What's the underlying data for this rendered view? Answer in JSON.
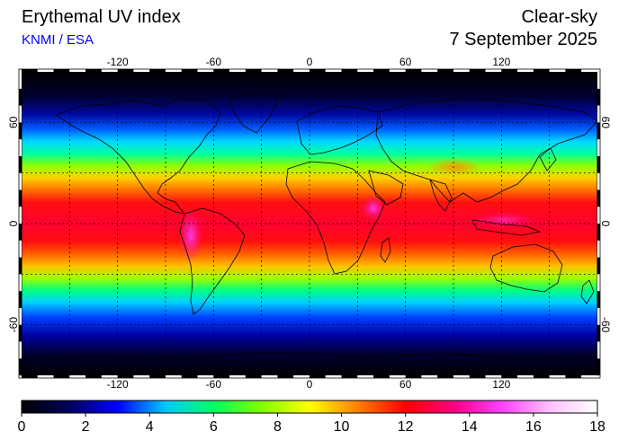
{
  "header": {
    "title": "Erythemal UV index",
    "source": "KNMI / ESA",
    "subtitle": "Clear-sky",
    "date": "7 September 2025"
  },
  "map": {
    "projection": "equirectangular",
    "lon_range": [
      -180,
      180
    ],
    "lat_range": [
      -90,
      90
    ],
    "grid_lon_step": 30,
    "grid_lat_step": 30,
    "lon_tick_labels": [
      "-120",
      "-60",
      "0",
      "60",
      "120"
    ],
    "lat_tick_labels": [
      "60",
      "0",
      "-60"
    ],
    "grid": true
  },
  "colorbar": {
    "min": 0,
    "max": 18,
    "tick_labels": [
      "0",
      "2",
      "4",
      "6",
      "8",
      "10",
      "12",
      "14",
      "16",
      "18"
    ],
    "colors": [
      "#000000",
      "#000060",
      "#0000ff",
      "#00c8ff",
      "#00ff60",
      "#80ff00",
      "#ffff00",
      "#ff8000",
      "#ff0000",
      "#ff0080",
      "#ff40ff",
      "#ffc0ff",
      "#ffffff"
    ]
  },
  "palette": {
    "title_color": "#000000",
    "source_color": "#0000ff"
  }
}
